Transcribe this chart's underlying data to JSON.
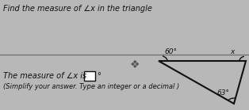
{
  "title": "Find the measure of ∠x in the triangle",
  "angle_labels": [
    "60°",
    "63°",
    "x"
  ],
  "answer_label": "The measure of ∠x is",
  "answer_unit": "°",
  "hint": "(Simplify your answer. Type an integer or a decimal )",
  "bg_color": "#b8b8b8",
  "triangle_color": "#111111",
  "text_color": "#111111",
  "title_fontsize": 7.0,
  "label_fontsize": 6.5,
  "answer_fontsize": 7.0,
  "hint_fontsize": 6.0
}
